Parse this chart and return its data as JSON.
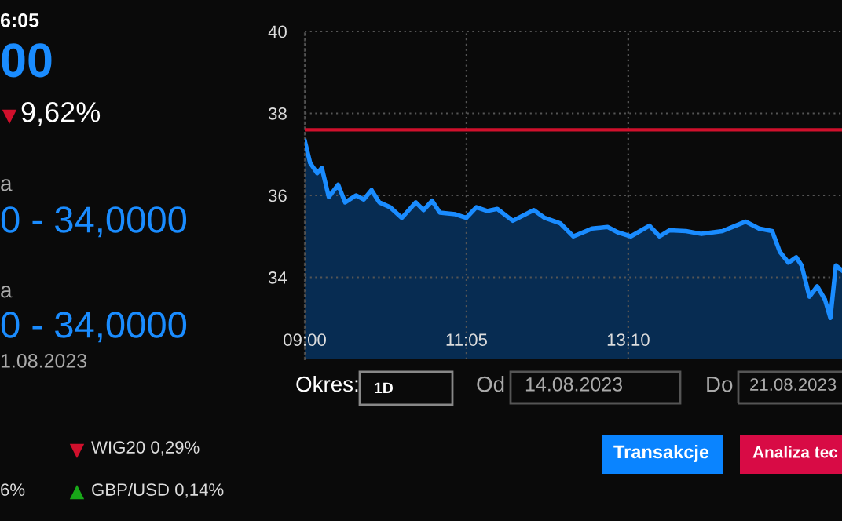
{
  "chart_data": {
    "type": "area",
    "x": [
      9.0,
      9.07,
      9.16,
      9.22,
      9.31,
      9.43,
      9.52,
      9.66,
      9.76,
      9.86,
      9.96,
      10.1,
      10.25,
      10.43,
      10.53,
      10.64,
      10.74,
      10.94,
      11.08,
      11.21,
      11.35,
      11.48,
      11.68,
      11.95,
      12.09,
      12.29,
      12.46,
      12.7,
      12.9,
      13.03,
      13.2,
      13.44,
      13.57,
      13.7,
      13.91,
      14.11,
      14.38,
      14.55,
      14.68,
      14.85,
      15.02,
      15.12,
      15.23,
      15.33,
      15.4,
      15.5,
      15.6,
      15.7,
      15.77,
      15.84,
      15.92
    ],
    "series": [
      {
        "color": "#1a8cff",
        "values": [
          37.33,
          36.79,
          36.54,
          36.67,
          35.96,
          36.26,
          35.83,
          36.0,
          35.9,
          36.13,
          35.83,
          35.71,
          35.45,
          35.83,
          35.64,
          35.87,
          35.58,
          35.54,
          35.45,
          35.71,
          35.62,
          35.67,
          35.38,
          35.64,
          35.45,
          35.32,
          35.0,
          35.19,
          35.23,
          35.1,
          35.0,
          35.26,
          35.0,
          35.15,
          35.13,
          35.06,
          35.13,
          35.26,
          35.36,
          35.19,
          35.13,
          34.62,
          34.36,
          34.49,
          34.29,
          33.53,
          33.78,
          33.46,
          33.01,
          34.29,
          34.17
        ]
      }
    ],
    "xlim": [
      9.0,
      15.92
    ],
    "ylim": [
      32,
      40
    ],
    "xticks": [
      {
        "value": 9.0,
        "label": "09:00"
      },
      {
        "value": 11.0833,
        "label": "11:05"
      },
      {
        "value": 13.1667,
        "label": "13:10"
      }
    ],
    "yticks": [
      34,
      36,
      38,
      40
    ],
    "ref_lines": [
      {
        "axis": "y",
        "value": 37.6,
        "color": "#d0102c"
      }
    ],
    "grid": true,
    "annotations": [
      "6:05",
      "00",
      "9,62%",
      "a",
      "0 - 34,0000",
      "a",
      "0 - 34,0000",
      "1.08.2023",
      "WIG20 0,29%",
      "6%",
      "GBP/USD 0,14%",
      "Okres:",
      "1D",
      "Od",
      "14.08.2023",
      "Do",
      "21.08.2023",
      "Transakcje",
      "Analiza tec"
    ]
  }
}
